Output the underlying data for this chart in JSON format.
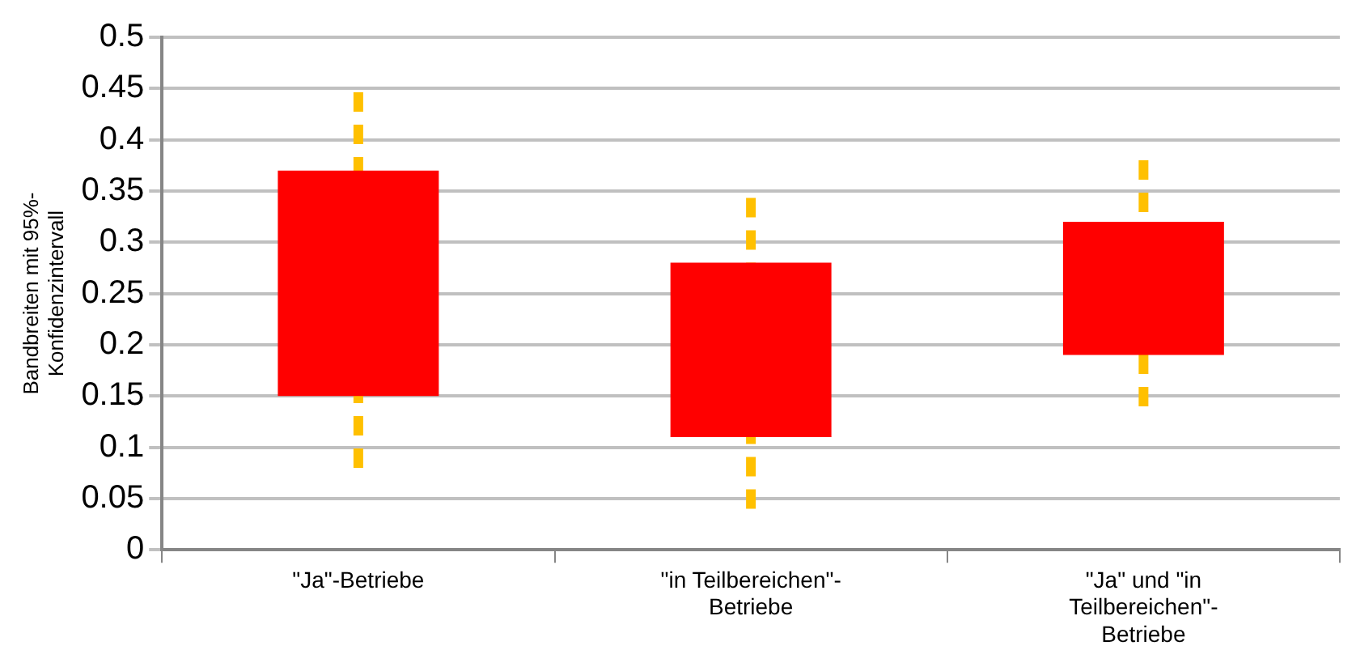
{
  "chart_data": {
    "type": "bar",
    "ylabel": "Bandbreiten mit 95%-Konfidenzintervall",
    "categories": [
      "\"Ja\"-Betriebe",
      "\"in Teilbereichen\"-Betriebe",
      "\"Ja\" und \"in Teilbereichen\"-Betriebe"
    ],
    "base": [
      0.15,
      0.11,
      0.19
    ],
    "values": [
      0.22,
      0.17,
      0.13
    ],
    "errors": [
      [
        0.08,
        0.45
      ],
      [
        0.04,
        0.35
      ],
      [
        0.14,
        0.38
      ]
    ],
    "color": "#ff0000",
    "ylim": [
      0,
      0.5
    ],
    "yticks": [
      0,
      0.05,
      0.1,
      0.15,
      0.2,
      0.25,
      0.3,
      0.35,
      0.4,
      0.45,
      0.5
    ],
    "grid": "y",
    "legend": false
  }
}
